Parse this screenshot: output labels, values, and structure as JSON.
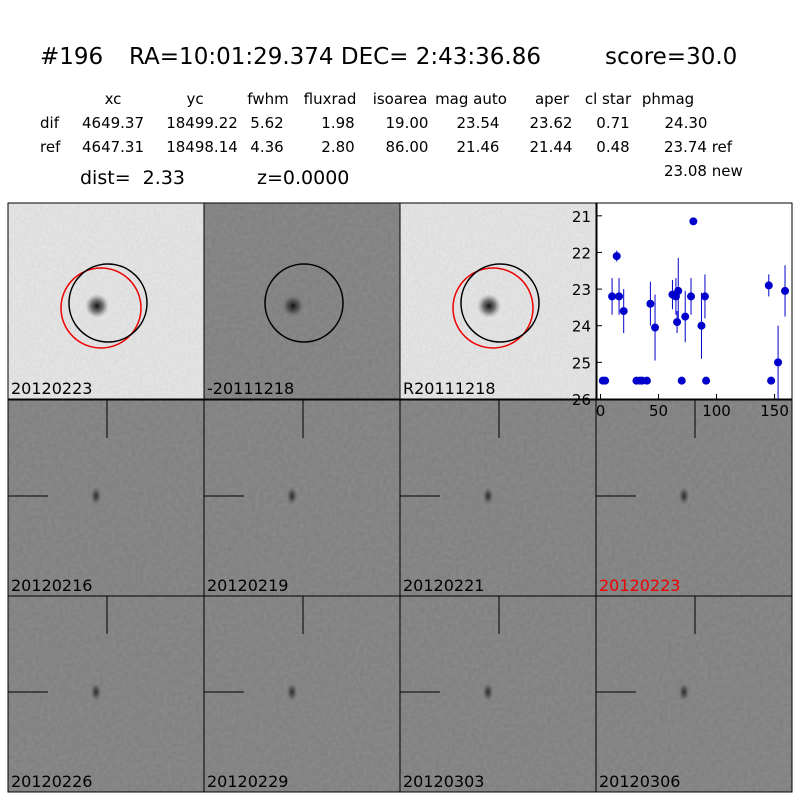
{
  "header": {
    "object": "#196",
    "coords": "RA=10:01:29.374 DEC= 2:43:36.86",
    "score": "score=30.0"
  },
  "table": {
    "columns": [
      "xc",
      "yc",
      "fwhm",
      "fluxrad",
      "isoarea",
      "mag auto",
      "aper",
      "cl star",
      "phmag"
    ],
    "rows": [
      {
        "label": "dif",
        "cells": [
          "4649.37",
          "18499.22",
          "5.62",
          "1.98",
          "19.00",
          "23.54",
          "23.62",
          "0.71",
          "24.30"
        ]
      },
      {
        "label": "ref",
        "cells": [
          "4647.31",
          "18498.14",
          "4.36",
          "2.80",
          "86.00",
          "21.46",
          "21.44",
          "0.48",
          "23.74 ref"
        ]
      }
    ],
    "extra": "23.08 new"
  },
  "distance": {
    "dist": "dist=  2.33",
    "z": "z=0.0000"
  },
  "panels": [
    "20120223",
    "-20111218",
    "R20111218",
    "20120216",
    "20120219",
    "20120221",
    "20120223",
    "20120226",
    "20120229",
    "20120303",
    "20120306"
  ],
  "chart_data": {
    "type": "scatter",
    "color": "#0000cc",
    "x": [
      2,
      4,
      10,
      14,
      16,
      20,
      31,
      34,
      36,
      40,
      43,
      47,
      62,
      65,
      66,
      67,
      70,
      73,
      78,
      80,
      87,
      90,
      91,
      145,
      147,
      153,
      159
    ],
    "series": [
      {
        "name": "phmag",
        "values": [
          25.5,
          25.5,
          23.2,
          22.1,
          23.2,
          23.6,
          25.5,
          25.5,
          25.5,
          25.5,
          23.4,
          24.05,
          23.15,
          23.2,
          23.9,
          23.05,
          25.5,
          23.75,
          23.2,
          21.15,
          24.0,
          23.2,
          25.5,
          22.9,
          25.5,
          25.0,
          23.05
        ],
        "errors": [
          0,
          0,
          0.5,
          0.15,
          0.5,
          0.6,
          0,
          0,
          0,
          0,
          0.6,
          0.9,
          0.4,
          0.5,
          0.3,
          0.9,
          0,
          0.7,
          0.5,
          0.05,
          0.9,
          0.6,
          0,
          0.3,
          0,
          1.0,
          0.7
        ]
      }
    ],
    "xlim": [
      -3,
      165
    ],
    "ylim": [
      26,
      20.65
    ],
    "xticks": [
      0,
      50,
      100,
      150
    ],
    "yticks": [
      21,
      22,
      23,
      24,
      25,
      26
    ]
  }
}
